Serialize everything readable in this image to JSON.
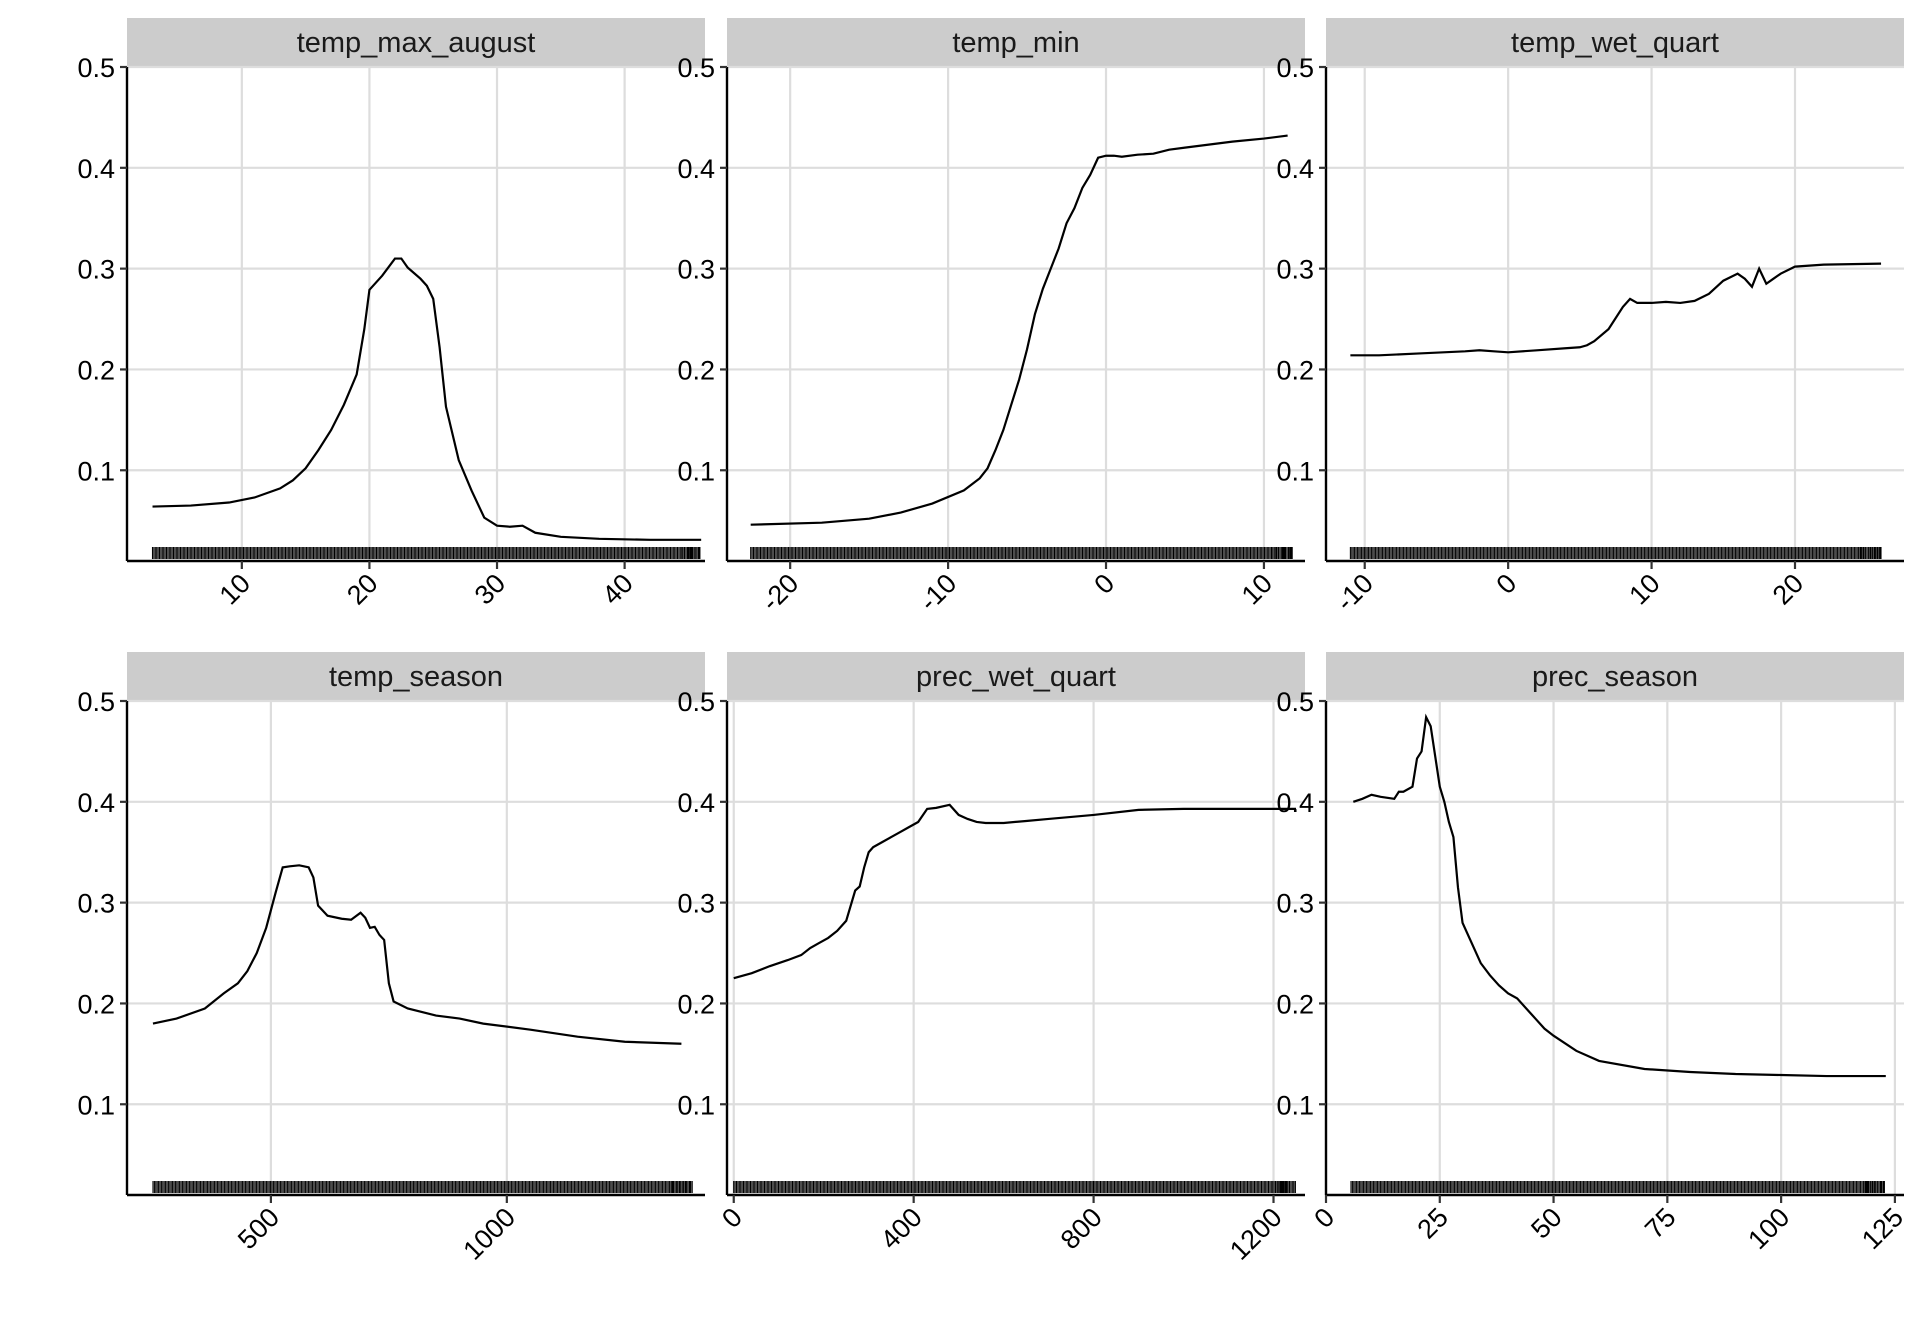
{
  "chart_data": [
    {
      "type": "line",
      "title": "temp_max_august",
      "xlim": [
        1,
        46.3
      ],
      "ylim": [
        0.01,
        0.5
      ],
      "x_ticks": [
        10,
        20,
        30,
        40
      ],
      "y_ticks": [
        0.1,
        0.2,
        0.3,
        0.4,
        0.5
      ],
      "rug_range": [
        3,
        46
      ],
      "x": [
        3,
        6,
        9,
        11,
        13,
        14,
        15,
        16,
        17,
        18,
        19,
        19.6,
        20,
        21,
        22,
        22.5,
        23,
        24,
        24.5,
        25,
        25.5,
        26,
        27,
        28,
        29,
        30,
        31,
        32,
        33,
        35,
        38,
        42,
        46
      ],
      "values": [
        0.064,
        0.065,
        0.068,
        0.073,
        0.082,
        0.09,
        0.102,
        0.12,
        0.14,
        0.165,
        0.195,
        0.24,
        0.279,
        0.293,
        0.31,
        0.31,
        0.301,
        0.29,
        0.283,
        0.27,
        0.222,
        0.163,
        0.11,
        0.08,
        0.053,
        0.045,
        0.044,
        0.045,
        0.038,
        0.034,
        0.032,
        0.031,
        0.031
      ]
    },
    {
      "type": "line",
      "title": "temp_min",
      "xlim": [
        -24,
        12.6
      ],
      "ylim": [
        0.01,
        0.5
      ],
      "x_ticks": [
        -20,
        -10,
        0,
        10
      ],
      "y_ticks": [
        0.1,
        0.2,
        0.3,
        0.4,
        0.5
      ],
      "rug_range": [
        -22.5,
        11.8
      ],
      "x": [
        -22.5,
        -18,
        -15,
        -13,
        -11,
        -9,
        -8,
        -7.5,
        -7,
        -6.5,
        -6,
        -5.5,
        -5,
        -4.5,
        -4,
        -3.5,
        -3,
        -2.5,
        -2,
        -1.5,
        -1,
        -0.5,
        0,
        0.5,
        1,
        2,
        3,
        4,
        5,
        6,
        8,
        10,
        11.5
      ],
      "values": [
        0.046,
        0.048,
        0.052,
        0.058,
        0.067,
        0.08,
        0.092,
        0.102,
        0.12,
        0.14,
        0.165,
        0.19,
        0.22,
        0.255,
        0.28,
        0.3,
        0.32,
        0.345,
        0.36,
        0.38,
        0.393,
        0.41,
        0.412,
        0.412,
        0.411,
        0.413,
        0.414,
        0.418,
        0.42,
        0.422,
        0.426,
        0.429,
        0.432
      ]
    },
    {
      "type": "line",
      "title": "temp_wet_quart",
      "xlim": [
        -12.7,
        27.6
      ],
      "ylim": [
        0.01,
        0.5
      ],
      "x_ticks": [
        -10,
        0,
        10,
        20
      ],
      "y_ticks": [
        0.1,
        0.2,
        0.3,
        0.4,
        0.5
      ],
      "rug_range": [
        -11,
        26
      ],
      "x": [
        -11,
        -9,
        -6,
        -3,
        -2,
        -1,
        0,
        2,
        4,
        5,
        5.5,
        6,
        7,
        8,
        8.5,
        9,
        10,
        11,
        12,
        13,
        14,
        15,
        16,
        16.5,
        17,
        17.5,
        18,
        18.5,
        19,
        20,
        22,
        26
      ],
      "values": [
        0.214,
        0.214,
        0.216,
        0.218,
        0.219,
        0.218,
        0.217,
        0.219,
        0.221,
        0.222,
        0.224,
        0.228,
        0.24,
        0.262,
        0.27,
        0.266,
        0.266,
        0.267,
        0.266,
        0.268,
        0.275,
        0.288,
        0.295,
        0.29,
        0.282,
        0.3,
        0.285,
        0.29,
        0.295,
        0.302,
        0.304,
        0.305
      ]
    },
    {
      "type": "line",
      "title": "temp_season",
      "xlim": [
        195,
        1420
      ],
      "ylim": [
        0.01,
        0.5
      ],
      "x_ticks": [
        500,
        1000
      ],
      "y_ticks": [
        0.1,
        0.2,
        0.3,
        0.4,
        0.5
      ],
      "rug_range": [
        250,
        1395
      ],
      "x": [
        250,
        300,
        360,
        400,
        430,
        450,
        470,
        490,
        510,
        525,
        540,
        560,
        580,
        590,
        600,
        620,
        650,
        670,
        690,
        700,
        710,
        720,
        730,
        740,
        750,
        760,
        790,
        850,
        900,
        950,
        1050,
        1150,
        1250,
        1370
      ],
      "values": [
        0.18,
        0.185,
        0.195,
        0.21,
        0.22,
        0.232,
        0.25,
        0.275,
        0.31,
        0.335,
        0.336,
        0.337,
        0.335,
        0.325,
        0.297,
        0.287,
        0.284,
        0.283,
        0.29,
        0.285,
        0.275,
        0.276,
        0.268,
        0.263,
        0.22,
        0.202,
        0.195,
        0.188,
        0.185,
        0.18,
        0.174,
        0.167,
        0.162,
        0.16
      ]
    },
    {
      "type": "line",
      "title": "prec_wet_quart",
      "xlim": [
        -15,
        1270
      ],
      "ylim": [
        0.01,
        0.5
      ],
      "x_ticks": [
        0,
        400,
        800,
        1200
      ],
      "y_ticks": [
        0.1,
        0.2,
        0.3,
        0.4,
        0.5
      ],
      "rug_range": [
        0,
        1250
      ],
      "x": [
        0,
        40,
        80,
        120,
        150,
        170,
        190,
        210,
        230,
        250,
        270,
        280,
        290,
        300,
        310,
        330,
        350,
        370,
        390,
        410,
        430,
        450,
        480,
        500,
        520,
        540,
        560,
        600,
        650,
        700,
        800,
        900,
        1000,
        1100,
        1250
      ],
      "values": [
        0.225,
        0.23,
        0.237,
        0.243,
        0.248,
        0.255,
        0.26,
        0.265,
        0.272,
        0.282,
        0.312,
        0.316,
        0.335,
        0.35,
        0.355,
        0.36,
        0.365,
        0.37,
        0.375,
        0.38,
        0.393,
        0.394,
        0.397,
        0.387,
        0.383,
        0.38,
        0.379,
        0.379,
        0.381,
        0.383,
        0.387,
        0.392,
        0.393,
        0.393,
        0.393
      ]
    },
    {
      "type": "line",
      "title": "prec_season",
      "xlim": [
        0,
        127
      ],
      "ylim": [
        0.01,
        0.5
      ],
      "x_ticks": [
        0,
        25,
        50,
        75,
        100,
        125
      ],
      "y_ticks": [
        0.1,
        0.2,
        0.3,
        0.4,
        0.5
      ],
      "rug_range": [
        5.5,
        123
      ],
      "x": [
        6,
        8,
        10,
        12,
        15,
        16,
        17,
        19,
        20,
        21,
        22,
        23,
        24,
        25,
        26,
        27,
        28,
        29,
        30,
        32,
        34,
        36,
        38,
        40,
        42,
        44,
        46,
        48,
        50,
        55,
        60,
        70,
        80,
        90,
        100,
        110,
        123
      ],
      "values": [
        0.4,
        0.403,
        0.407,
        0.405,
        0.403,
        0.41,
        0.41,
        0.415,
        0.443,
        0.45,
        0.484,
        0.475,
        0.445,
        0.415,
        0.4,
        0.38,
        0.365,
        0.315,
        0.28,
        0.26,
        0.24,
        0.228,
        0.218,
        0.21,
        0.205,
        0.195,
        0.185,
        0.175,
        0.168,
        0.153,
        0.143,
        0.135,
        0.132,
        0.13,
        0.129,
        0.128,
        0.128
      ]
    }
  ]
}
